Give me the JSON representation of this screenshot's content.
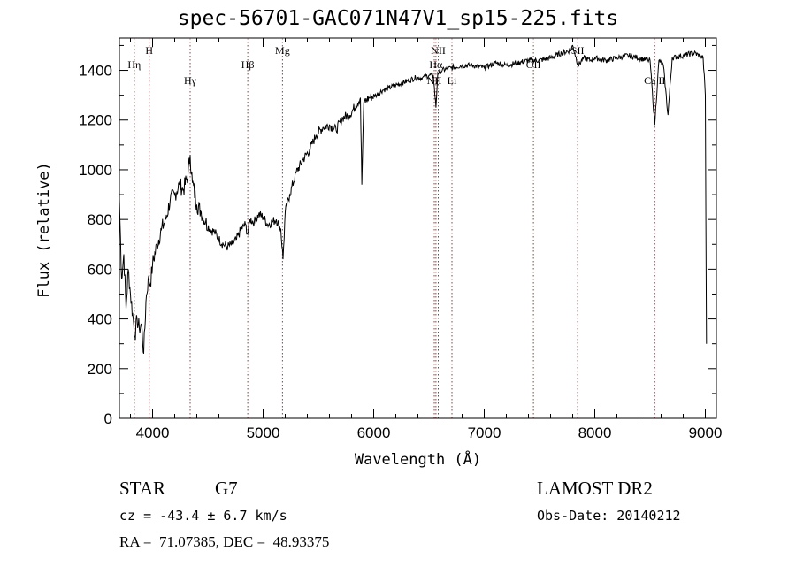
{
  "chart_data": {
    "type": "line",
    "title": "spec-56701-GAC071N47V1_sp15-225.fits",
    "xlabel": "Wavelength (Å)",
    "ylabel": "Flux (relative)",
    "xlim": [
      3700,
      9100
    ],
    "ylim": [
      0,
      1530
    ],
    "xticks": [
      4000,
      5000,
      6000,
      7000,
      8000,
      9000
    ],
    "yticks": [
      0,
      200,
      400,
      600,
      800,
      1000,
      1200,
      1400
    ],
    "grid": false,
    "legend": "none",
    "line_color": "#000000",
    "marker_color": "#b03030",
    "series": [
      {
        "values_x": [
          3700,
          3720,
          3740,
          3760,
          3780,
          3800,
          3820,
          3840,
          3860,
          3880,
          3900,
          3920,
          3940,
          3960,
          3980,
          4000,
          4040,
          4080,
          4120,
          4160,
          4200,
          4240,
          4280,
          4320,
          4340,
          4360,
          4400,
          4440,
          4480,
          4520,
          4560,
          4600,
          4640,
          4680,
          4720,
          4760,
          4800,
          4840,
          4861,
          4880,
          4920,
          4960,
          5000,
          5040,
          5080,
          5120,
          5160,
          5180,
          5200,
          5240,
          5300,
          5360,
          5420,
          5480,
          5540,
          5600,
          5660,
          5720,
          5780,
          5840,
          5880,
          5893,
          5910,
          5960,
          6020,
          6080,
          6140,
          6200,
          6260,
          6320,
          6380,
          6440,
          6500,
          6540,
          6563,
          6580,
          6620,
          6700,
          6800,
          6900,
          7000,
          7100,
          7200,
          7300,
          7400,
          7500,
          7600,
          7700,
          7780,
          7800,
          7850,
          7900,
          7960,
          8000,
          8100,
          8200,
          8300,
          8400,
          8480,
          8500,
          8542,
          8580,
          8620,
          8662,
          8700,
          8800,
          8900,
          8980,
          9000,
          9010
        ],
        "values_y": [
          880,
          560,
          660,
          440,
          600,
          500,
          420,
          330,
          400,
          360,
          380,
          260,
          470,
          560,
          540,
          620,
          700,
          760,
          800,
          880,
          900,
          940,
          920,
          980,
          1060,
          950,
          860,
          830,
          790,
          760,
          750,
          720,
          700,
          690,
          700,
          720,
          760,
          780,
          740,
          800,
          790,
          820,
          810,
          780,
          790,
          800,
          760,
          640,
          830,
          900,
          990,
          1040,
          1080,
          1140,
          1170,
          1180,
          1160,
          1210,
          1220,
          1260,
          1290,
          940,
          1270,
          1290,
          1300,
          1320,
          1330,
          1340,
          1350,
          1360,
          1370,
          1370,
          1380,
          1380,
          1250,
          1390,
          1400,
          1410,
          1420,
          1420,
          1410,
          1430,
          1420,
          1430,
          1440,
          1440,
          1450,
          1470,
          1480,
          1500,
          1420,
          1450,
          1440,
          1450,
          1440,
          1450,
          1460,
          1450,
          1440,
          1440,
          1180,
          1440,
          1420,
          1220,
          1450,
          1460,
          1470,
          1450,
          1300,
          300
        ]
      }
    ],
    "line_markers": [
      {
        "label": "Hη",
        "x": 3835
      },
      {
        "label": "H",
        "x": 3970
      },
      {
        "label": "Hγ",
        "x": 4340
      },
      {
        "label": "Hβ",
        "x": 4861
      },
      {
        "label": "Mg",
        "x": 5175
      },
      {
        "label": "NII",
        "x": 6548
      },
      {
        "label": "Hα",
        "x": 6563
      },
      {
        "label": "NII",
        "x": 6584
      },
      {
        "label": "Li",
        "x": 6708
      },
      {
        "label": "OII",
        "x": 7445
      },
      {
        "label": "SII",
        "x": 7845
      },
      {
        "label": "Ca II",
        "x": 8542
      }
    ]
  },
  "info": {
    "class": "STAR",
    "subclass": "G7",
    "survey": "LAMOST DR2",
    "cz": "cz = -43.4 ± 6.7 km/s",
    "obs_date": "Obs-Date: 20140212",
    "radec": "RA =  71.07385, DEC =  48.93375"
  }
}
